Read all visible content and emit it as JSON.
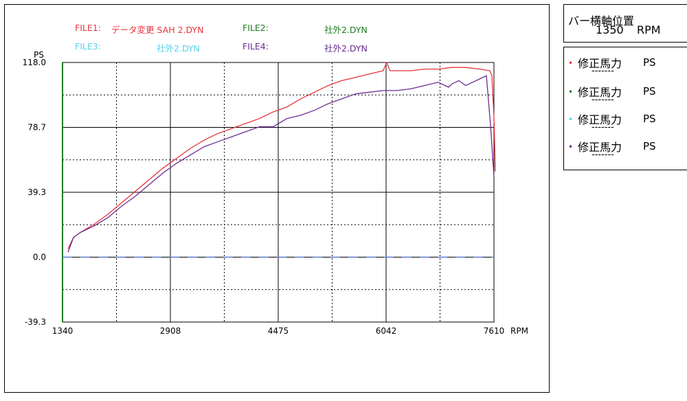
{
  "legend": {
    "file1": {
      "label": "FILE1:",
      "name": "データ変更 SAH 2.DYN",
      "color": "#e8323c"
    },
    "file2": {
      "label": "FILE2:",
      "name": "社外2.DYN",
      "color": "#1f7a1f"
    },
    "file3": {
      "label": "FILE3:",
      "name": "社外2.DYN",
      "color": "#54d2ec"
    },
    "file4": {
      "label": "FILE4:",
      "name": "社外2.DYN",
      "color": "#6a2c91"
    }
  },
  "sidebar": {
    "title": "バー横軸位置",
    "position_value": "1350",
    "position_unit": "RPM",
    "items": [
      {
        "dot": "•",
        "label": "修正馬力",
        "unit": "PS",
        "value": "-------",
        "color": "#e8323c"
      },
      {
        "dot": "•",
        "label": "修正馬力",
        "unit": "PS",
        "value": "-------",
        "color": "#1f7a1f"
      },
      {
        "dot": "•",
        "label": "修正馬力",
        "unit": "PS",
        "value": "-------",
        "color": "#54d2ec"
      },
      {
        "dot": "•",
        "label": "修正馬力",
        "unit": "PS",
        "value": "-------",
        "color": "#6a2c91"
      }
    ]
  },
  "chart_data": {
    "type": "line",
    "ylabel": "PS",
    "xlabel": "RPM",
    "xlim": [
      1340,
      7610
    ],
    "ylim": [
      -39.3,
      118.0
    ],
    "x_ticks": [
      "1340",
      "2908",
      "4475",
      "6042",
      "7610"
    ],
    "y_ticks": [
      "118.0",
      "78.7",
      "39.3",
      "0.0",
      "-39.3"
    ],
    "grid": true,
    "zero_line_color": "#5a78d2",
    "series": [
      {
        "name": "FILE1",
        "color": "#e8323c",
        "x": [
          1420,
          1500,
          1600,
          1800,
          2000,
          2200,
          2400,
          2600,
          2800,
          3000,
          3200,
          3400,
          3600,
          3800,
          4000,
          4200,
          4400,
          4600,
          4800,
          5000,
          5200,
          5400,
          5600,
          5800,
          6000,
          6050,
          6100,
          6200,
          6400,
          6600,
          6800,
          7000,
          7200,
          7400,
          7550,
          7580,
          7610,
          7630
        ],
        "y": [
          5,
          12,
          15,
          20,
          26,
          33,
          40,
          47,
          54,
          60,
          66,
          71,
          75,
          78,
          81,
          84,
          88,
          91,
          96,
          100,
          104,
          107,
          109,
          111,
          113,
          118,
          113,
          113,
          113,
          114,
          114,
          115,
          115,
          114,
          113,
          110,
          85,
          52
        ]
      },
      {
        "name": "FILE4",
        "color": "#6a2c91",
        "x": [
          1420,
          1500,
          1600,
          1800,
          2000,
          2200,
          2400,
          2600,
          2800,
          3000,
          3200,
          3400,
          3600,
          3800,
          4000,
          4200,
          4400,
          4600,
          4800,
          5000,
          5200,
          5400,
          5600,
          5800,
          6000,
          6200,
          6400,
          6600,
          6800,
          6950,
          7000,
          7100,
          7200,
          7300,
          7400,
          7500,
          7560,
          7610
        ],
        "y": [
          3,
          12,
          15,
          19,
          24,
          31,
          37,
          44,
          51,
          57,
          62,
          67,
          70,
          73,
          76,
          79,
          79,
          84,
          86,
          89,
          93,
          96,
          99,
          100,
          101,
          101,
          102,
          104,
          106,
          103,
          105,
          107,
          104,
          106,
          108,
          110,
          80,
          49
        ]
      }
    ]
  }
}
